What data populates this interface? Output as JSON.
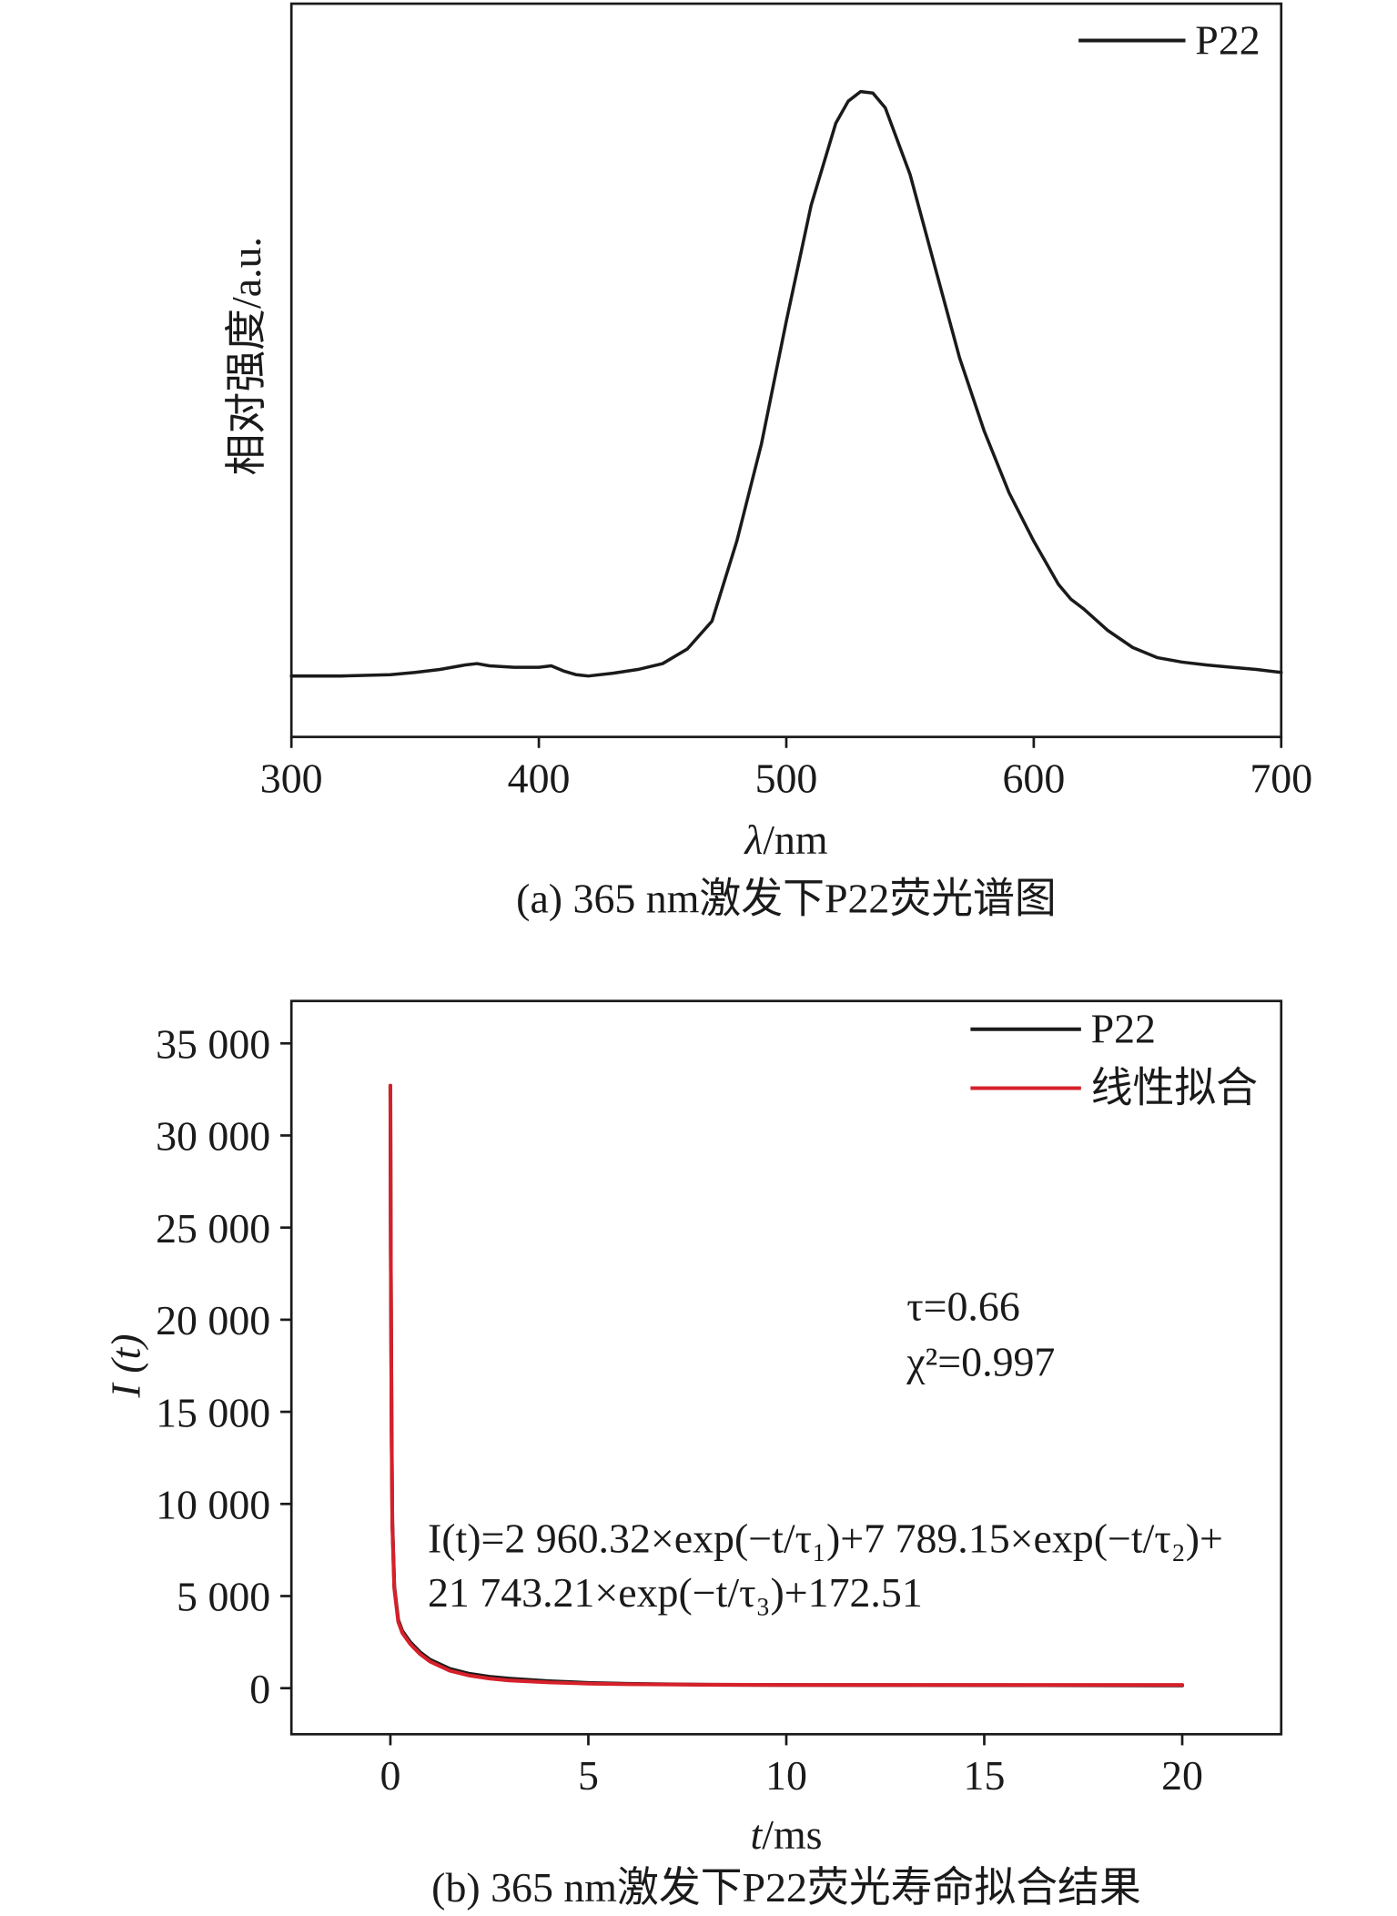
{
  "chart_data": [
    {
      "type": "line",
      "caption": "(a) 365 nm激发下P22荧光谱图",
      "xlabel": {
        "symbol": "λ",
        "unit": "/nm"
      },
      "ylabel": "相对强度/a.u.",
      "xlim": [
        300,
        700
      ],
      "ylim": [
        0,
        1
      ],
      "xticks": [
        300,
        400,
        500,
        600,
        700
      ],
      "xtick_labels": [
        "300",
        "400",
        "500",
        "600",
        "700"
      ],
      "grid": false,
      "legend": "top-right",
      "series": [
        {
          "name": "P22",
          "color": "#1a1a1a",
          "x": [
            300,
            320,
            340,
            350,
            360,
            370,
            375,
            380,
            390,
            400,
            405,
            410,
            415,
            420,
            430,
            440,
            450,
            460,
            470,
            480,
            490,
            500,
            510,
            520,
            525,
            530,
            535,
            540,
            550,
            560,
            570,
            580,
            590,
            600,
            610,
            615,
            620,
            630,
            640,
            650,
            660,
            670,
            680,
            690,
            700
          ],
          "y": [
            0.083,
            0.083,
            0.085,
            0.088,
            0.092,
            0.098,
            0.1,
            0.097,
            0.095,
            0.095,
            0.097,
            0.09,
            0.085,
            0.083,
            0.087,
            0.092,
            0.1,
            0.12,
            0.158,
            0.267,
            0.4,
            0.567,
            0.725,
            0.837,
            0.867,
            0.88,
            0.878,
            0.858,
            0.767,
            0.642,
            0.517,
            0.417,
            0.333,
            0.267,
            0.208,
            0.188,
            0.175,
            0.145,
            0.122,
            0.108,
            0.102,
            0.098,
            0.095,
            0.092,
            0.088
          ]
        }
      ]
    },
    {
      "type": "line",
      "caption": "(b) 365 nm激发下P22荧光寿命拟合结果",
      "xlabel": {
        "symbol": "t",
        "unit": "/ms"
      },
      "ylabel": "I (t)",
      "xlim": [
        -2.5,
        22.5
      ],
      "ylim": [
        -2500,
        37300
      ],
      "xticks": [
        0,
        5,
        10,
        15,
        20
      ],
      "xtick_labels": [
        "0",
        "5",
        "10",
        "15",
        "20"
      ],
      "yticks": [
        0,
        5000,
        10000,
        15000,
        20000,
        25000,
        30000,
        35000
      ],
      "ytick_labels": [
        "0",
        "5 000",
        "10 000",
        "15 000",
        "20 000",
        "25 000",
        "30 000",
        "35 000"
      ],
      "grid": false,
      "legend": "top-right",
      "annotations": {
        "tau": "τ=0.66",
        "chi2": "χ²=0.997",
        "equation_line1": "I(t)=2 960.32×exp(−t/τ₁)+7 789.15×exp(−t/τ₂)+",
        "equation_line2": "21 743.21×exp(−t/τ₃)+172.51"
      },
      "series": [
        {
          "name": "P22",
          "color": "#1a1a1a",
          "x": [
            0,
            0.01,
            0.03,
            0.05,
            0.1,
            0.2,
            0.3,
            0.5,
            0.75,
            1,
            1.5,
            2,
            2.5,
            3,
            4,
            5,
            6,
            8,
            10,
            12,
            15,
            18,
            20
          ],
          "y": [
            32700,
            24000,
            14000,
            9000,
            5500,
            3700,
            3100,
            2500,
            1950,
            1550,
            1050,
            780,
            620,
            520,
            380,
            290,
            240,
            190,
            175,
            165,
            160,
            155,
            150
          ]
        },
        {
          "name": "线性拟合",
          "color": "#d6202a",
          "x": [
            0,
            0.01,
            0.03,
            0.05,
            0.1,
            0.2,
            0.3,
            0.5,
            0.75,
            1,
            1.5,
            2,
            2.5,
            3,
            4,
            5,
            6,
            8,
            10,
            12,
            15,
            18,
            20
          ],
          "y": [
            32700,
            24500,
            13500,
            8800,
            5400,
            3600,
            3000,
            2400,
            1850,
            1450,
            950,
            680,
            520,
            420,
            310,
            250,
            215,
            185,
            176,
            174,
            173,
            172.5,
            172.5
          ]
        }
      ]
    }
  ]
}
